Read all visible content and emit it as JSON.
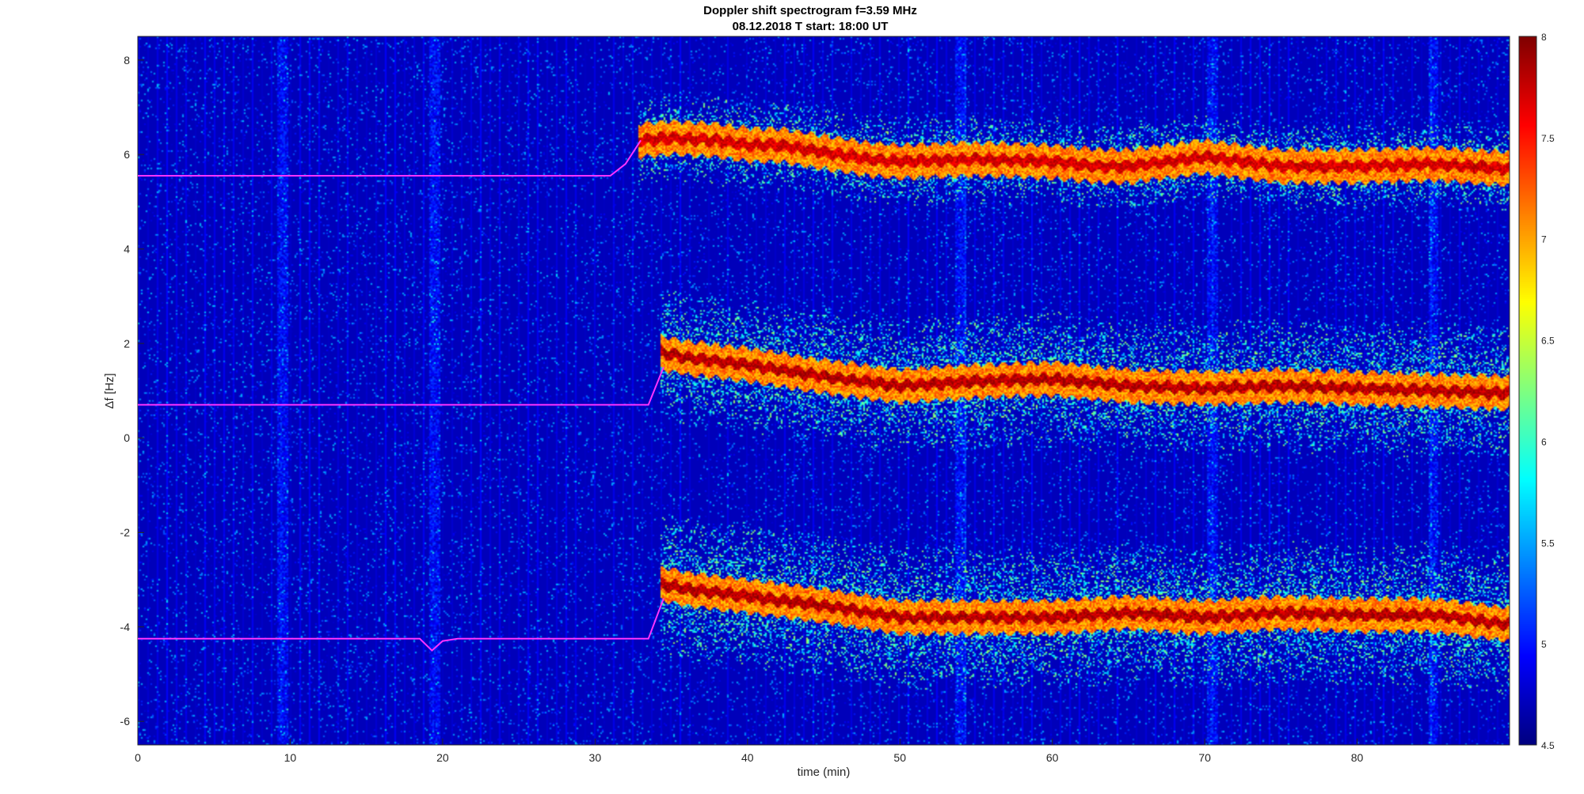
{
  "chart_data": {
    "type": "heatmap",
    "title": "Doppler shift spectrogram f=3.59 MHz",
    "subtitle": "08.12.2018   T start: 18:00 UT",
    "xlabel": "time (min)",
    "ylabel": "Δf [Hz]",
    "xlim": [
      0,
      90
    ],
    "ylim": [
      -6.5,
      8.5
    ],
    "xticks": [
      "0",
      "10",
      "20",
      "30",
      "40",
      "50",
      "60",
      "70",
      "80"
    ],
    "xtick_values": [
      0,
      10,
      20,
      30,
      40,
      50,
      60,
      70,
      80
    ],
    "yticks": [
      "8",
      "6",
      "4",
      "2",
      "0",
      "-2",
      "-4",
      "-6"
    ],
    "ytick_values": [
      8,
      6,
      4,
      2,
      0,
      -2,
      -4,
      -6
    ],
    "colormap": "jet",
    "colorbar": {
      "range": [
        4.5,
        8
      ],
      "ticks": [
        "8",
        "7.5",
        "7",
        "6.5",
        "6",
        "5.5",
        "5",
        "4.5"
      ],
      "tick_values": [
        8,
        7.5,
        7,
        6.5,
        6,
        5.5,
        5,
        4.5
      ]
    },
    "background_level": 4.7,
    "bright_time_columns_min": [
      9.5,
      19.5,
      54,
      70.5,
      85
    ],
    "traces": [
      {
        "color": "#ff33ff",
        "t": [
          0,
          5,
          10,
          15,
          20,
          25,
          31,
          32,
          33
        ],
        "f": [
          5.55,
          5.55,
          5.55,
          5.55,
          5.55,
          5.55,
          5.55,
          5.8,
          6.3
        ]
      },
      {
        "color": "#ff33ff",
        "t": [
          0,
          10,
          20,
          30,
          33.5,
          34.5
        ],
        "f": [
          0.7,
          0.7,
          0.7,
          0.7,
          0.7,
          1.5
        ]
      },
      {
        "color": "#ff33ff",
        "t": [
          0,
          5,
          10,
          18.5,
          19.3,
          20,
          21,
          25,
          30,
          33.5,
          34.5
        ],
        "f": [
          -4.25,
          -4.25,
          -4.25,
          -4.25,
          -4.5,
          -4.3,
          -4.25,
          -4.25,
          -4.25,
          -4.25,
          -3.4
        ]
      }
    ],
    "bands": [
      {
        "t": [
          33,
          35,
          38,
          40,
          42,
          45,
          48,
          50,
          55,
          60,
          63,
          65,
          70,
          75,
          80,
          85,
          90
        ],
        "f": [
          6.3,
          6.35,
          6.3,
          6.2,
          6.2,
          6.05,
          5.9,
          5.85,
          5.9,
          5.85,
          5.75,
          5.75,
          5.95,
          5.75,
          5.75,
          5.8,
          5.7
        ],
        "width": 0.35,
        "spread": 0.9,
        "peak": 7.9
      },
      {
        "t": [
          34.5,
          36,
          40,
          45,
          50,
          55,
          60,
          65,
          70,
          75,
          80,
          85,
          90
        ],
        "f": [
          1.8,
          1.7,
          1.55,
          1.3,
          1.1,
          1.2,
          1.25,
          1.1,
          1.05,
          1.1,
          1.05,
          1.0,
          0.95
        ],
        "width": 0.35,
        "spread": 1.4,
        "peak": 8.0
      },
      {
        "t": [
          34.5,
          36,
          40,
          45,
          50,
          55,
          60,
          65,
          70,
          75,
          80,
          85,
          90
        ],
        "f": [
          -3.1,
          -3.2,
          -3.35,
          -3.55,
          -3.8,
          -3.8,
          -3.8,
          -3.7,
          -3.8,
          -3.7,
          -3.75,
          -3.75,
          -3.95
        ],
        "width": 0.35,
        "spread": 1.5,
        "peak": 8.0
      }
    ]
  }
}
